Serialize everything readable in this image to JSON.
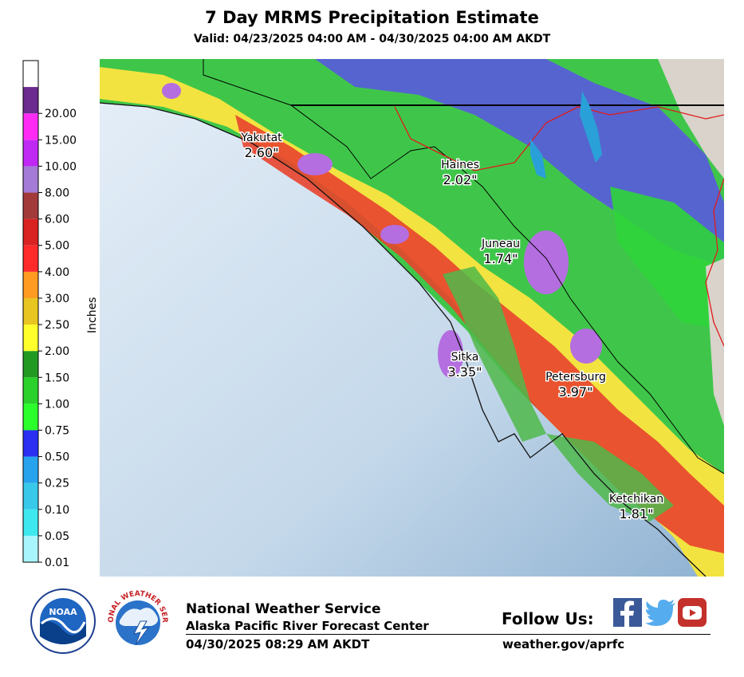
{
  "title": "7 Day MRMS Precipitation Estimate",
  "subtitle": "Valid: 04/23/2025 04:00 AM - 04/30/2025 04:00 AM AKDT",
  "legend": {
    "label": "Inches",
    "bins": [
      {
        "label": "0.01",
        "color": "#a9f5fd"
      },
      {
        "label": "0.05",
        "color": "#3ee8ef"
      },
      {
        "label": "0.10",
        "color": "#38c9ea"
      },
      {
        "label": "0.25",
        "color": "#27a3ee"
      },
      {
        "label": "0.50",
        "color": "#2a2ff2"
      },
      {
        "label": "0.75",
        "color": "#2bff2b"
      },
      {
        "label": "1.00",
        "color": "#2ad12a"
      },
      {
        "label": "1.50",
        "color": "#229a22"
      },
      {
        "label": "2.00",
        "color": "#ffff2c"
      },
      {
        "label": "2.50",
        "color": "#e8c520"
      },
      {
        "label": "3.00",
        "color": "#ff9b20"
      },
      {
        "label": "4.00",
        "color": "#ff2a2a"
      },
      {
        "label": "5.00",
        "color": "#d92222"
      },
      {
        "label": "6.00",
        "color": "#a33a3a"
      },
      {
        "label": "8.00",
        "color": "#a47bd6"
      },
      {
        "label": "10.00",
        "color": "#c028f4"
      },
      {
        "label": "15.00",
        "color": "#ff2bf4"
      },
      {
        "label": "20.00",
        "color": "#6b2b8f"
      }
    ],
    "top_color": "#ffffff"
  },
  "map": {
    "ocean_color": "#c9dcec",
    "stations": [
      {
        "name": "Yakutat",
        "value": "2.60\""
      },
      {
        "name": "Haines",
        "value": "2.02\""
      },
      {
        "name": "Juneau",
        "value": "1.74\""
      },
      {
        "name": "Sitka",
        "value": "3.35\""
      },
      {
        "name": "Petersburg",
        "value": "3.97\""
      },
      {
        "name": "Ketchikan",
        "value": "1.81\""
      }
    ]
  },
  "footer": {
    "org": "National Weather Service",
    "center": "Alaska Pacific River Forecast Center",
    "issued": "04/30/2025 08:29 AM AKDT",
    "follow": "Follow Us:",
    "site": "weather.gov/aprfc",
    "noaa_label": "NOAA",
    "nws_logo_text": "NATIONAL WEATHER SERVICE"
  }
}
